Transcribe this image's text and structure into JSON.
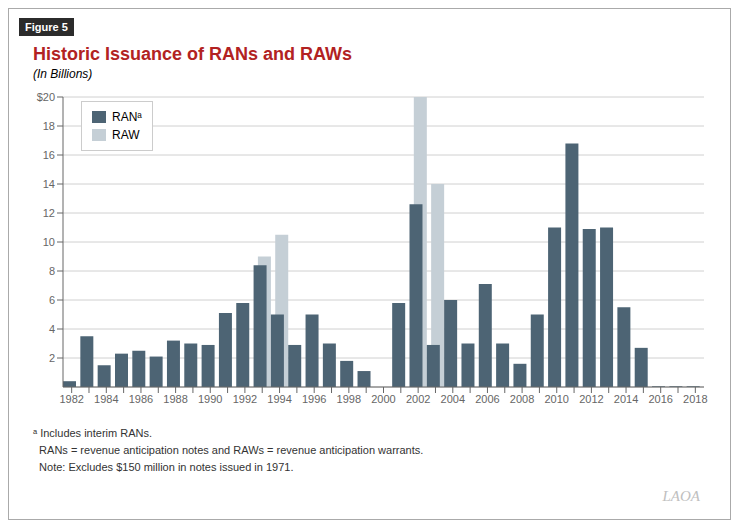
{
  "chart_data": {
    "type": "bar",
    "title": "Historic Issuance of RANs and RAWs",
    "subtitle": "(In Billions)",
    "annotations": [
      "Figure 5",
      "ᵃ Includes interim RANs.",
      "  RANs = revenue anticipation notes and RAWs = revenue anticipation warrants.",
      "  Note: Excludes $150 million in notes issued in 1971.",
      "LAOA"
    ],
    "categories": [
      "1982",
      null,
      "1984",
      null,
      "1986",
      null,
      "1988",
      null,
      "1990",
      null,
      "1992",
      null,
      "1994",
      null,
      "1996",
      null,
      "1998",
      null,
      "2000",
      null,
      "2002",
      null,
      "2004",
      null,
      "2006",
      null,
      "2008",
      null,
      "2010",
      null,
      "2012",
      null,
      "2014",
      null,
      "2016",
      null,
      "2018"
    ],
    "series": [
      {
        "name": "RANᵃ",
        "color": "#4d6474",
        "values": [
          0.4,
          3.5,
          1.5,
          2.3,
          2.5,
          2.1,
          3.2,
          3.0,
          2.9,
          5.1,
          5.8,
          8.4,
          5.0,
          2.9,
          5.0,
          3.0,
          1.8,
          1.1,
          0.0,
          5.8,
          12.6,
          2.9,
          6.0,
          3.0,
          7.1,
          3.0,
          1.6,
          5.0,
          11.0,
          16.8,
          10.9,
          11.0,
          5.5,
          2.7,
          0.05,
          0.05,
          0.05
        ]
      },
      {
        "name": "RAW",
        "color": "#c5cfd6",
        "values": [
          0.0,
          0.0,
          0.0,
          0.0,
          0.0,
          0.0,
          0.0,
          0.0,
          0.0,
          0.0,
          0.0,
          9.0,
          10.5,
          0.0,
          0.0,
          0.0,
          0.0,
          0.0,
          0.0,
          0.0,
          20.0,
          14.0,
          0.0,
          0.0,
          0.0,
          0.0,
          0.0,
          0.0,
          0.0,
          0.0,
          0.0,
          0.0,
          0.0,
          0.0,
          0.0,
          0.0,
          0.0
        ]
      }
    ],
    "ylim": [
      0,
      20
    ],
    "yticks": [
      2,
      4,
      6,
      8,
      10,
      12,
      14,
      16,
      18,
      {
        "value": 20,
        "label": "$20"
      }
    ],
    "grid": true,
    "legend": "upper left"
  }
}
